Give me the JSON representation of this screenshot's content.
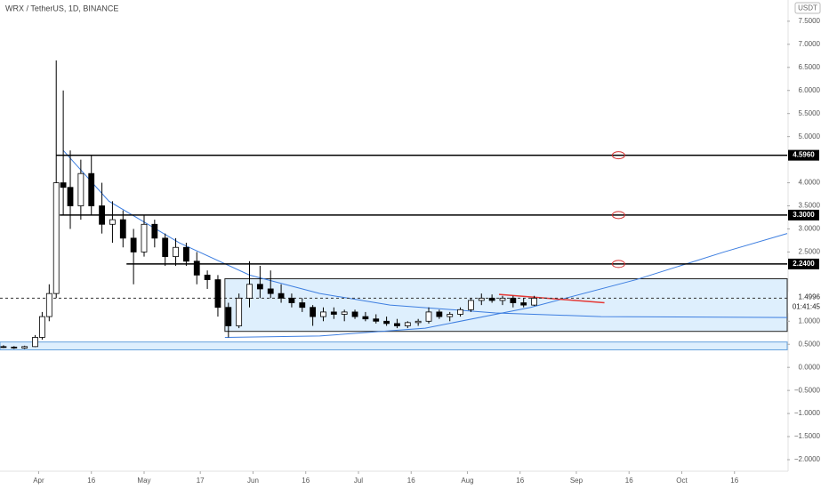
{
  "chart_data": {
    "type": "candlestick",
    "title": "WRX / TetherUS, 1D, BINANCE",
    "currency": "USDT",
    "xlim": [
      -11,
      213
    ],
    "ylim": [
      -2.25,
      7.96
    ],
    "xticks": [
      {
        "value": 0,
        "label": "Apr"
      },
      {
        "value": 15,
        "label": "16"
      },
      {
        "value": 30,
        "label": "May"
      },
      {
        "value": 46,
        "label": "17"
      },
      {
        "value": 61,
        "label": "Jun"
      },
      {
        "value": 76,
        "label": "16"
      },
      {
        "value": 91,
        "label": "Jul"
      },
      {
        "value": 106,
        "label": "16"
      },
      {
        "value": 122,
        "label": "Aug"
      },
      {
        "value": 137,
        "label": "16"
      },
      {
        "value": 153,
        "label": "Sep"
      },
      {
        "value": 168,
        "label": "16"
      },
      {
        "value": 183,
        "label": "Oct"
      },
      {
        "value": 198,
        "label": "16"
      }
    ],
    "yticks": [
      {
        "value": 7.5,
        "label": "7.5000"
      },
      {
        "value": 7,
        "label": "7.0000"
      },
      {
        "value": 6.5,
        "label": "6.5000"
      },
      {
        "value": 6,
        "label": "6.0000"
      },
      {
        "value": 5.5,
        "label": "5.5000"
      },
      {
        "value": 5,
        "label": "5.0000"
      },
      {
        "value": 4,
        "label": "4.0000"
      },
      {
        "value": 3.5,
        "label": "3.5000"
      },
      {
        "value": 3,
        "label": "3.0000"
      },
      {
        "value": 2.5,
        "label": "2.5000"
      },
      {
        "value": 1,
        "label": "1.0000"
      },
      {
        "value": 0.5,
        "label": "0.5000"
      },
      {
        "value": 0,
        "label": "0.0000"
      },
      {
        "value": -0.5,
        "label": "−0.5000"
      },
      {
        "value": -1,
        "label": "−1.0000"
      },
      {
        "value": -1.5,
        "label": "−1.5000"
      },
      {
        "value": -2,
        "label": "−2.0000"
      }
    ],
    "up_color": "#ffffff",
    "down_color": "#000000",
    "x": [
      -10,
      -7,
      -4,
      -1,
      1,
      3,
      5,
      7,
      9,
      12,
      15,
      18,
      21,
      24,
      27,
      30,
      33,
      36,
      39,
      42,
      45,
      48,
      51,
      54,
      57,
      60,
      63,
      66,
      69,
      72,
      75,
      78,
      81,
      84,
      87,
      90,
      93,
      96,
      99,
      102,
      105,
      108,
      111,
      114,
      117,
      120,
      123,
      126,
      129,
      132,
      135,
      138,
      141
    ],
    "open": [
      0.45,
      0.44,
      0.42,
      0.45,
      0.65,
      1.1,
      1.6,
      4.0,
      3.9,
      3.5,
      4.2,
      3.5,
      3.1,
      3.2,
      2.8,
      2.5,
      3.1,
      2.8,
      2.4,
      2.6,
      2.3,
      2.0,
      1.9,
      1.3,
      0.9,
      1.5,
      1.8,
      1.7,
      1.6,
      1.5,
      1.4,
      1.3,
      1.1,
      1.2,
      1.15,
      1.2,
      1.1,
      1.05,
      1.0,
      0.95,
      0.9,
      0.97,
      1.0,
      1.2,
      1.1,
      1.15,
      1.25,
      1.45,
      1.5,
      1.45,
      1.5,
      1.4,
      1.35
    ],
    "high": [
      0.48,
      0.46,
      0.47,
      0.7,
      1.2,
      1.8,
      6.65,
      6.0,
      4.7,
      4.5,
      4.6,
      4.0,
      3.6,
      3.4,
      3.0,
      3.3,
      3.2,
      2.9,
      2.8,
      2.7,
      2.5,
      2.1,
      2.0,
      1.4,
      1.6,
      2.3,
      2.2,
      2.1,
      1.8,
      1.6,
      1.5,
      1.35,
      1.3,
      1.3,
      1.25,
      1.25,
      1.2,
      1.15,
      1.1,
      1.05,
      1.0,
      1.05,
      1.3,
      1.25,
      1.2,
      1.3,
      1.5,
      1.6,
      1.58,
      1.55,
      1.55,
      1.5,
      1.55
    ],
    "low": [
      0.42,
      0.4,
      0.4,
      0.44,
      0.6,
      1.0,
      1.5,
      3.3,
      3.0,
      3.2,
      3.3,
      2.9,
      2.7,
      2.6,
      1.8,
      2.4,
      2.6,
      2.2,
      2.2,
      2.2,
      1.8,
      1.7,
      1.1,
      0.65,
      0.85,
      1.3,
      1.5,
      1.5,
      1.4,
      1.3,
      1.2,
      0.9,
      1.0,
      1.05,
      1.0,
      1.05,
      1.0,
      0.95,
      0.9,
      0.85,
      0.85,
      0.9,
      0.95,
      1.05,
      1.0,
      1.1,
      1.2,
      1.35,
      1.4,
      1.35,
      1.3,
      1.3,
      1.33
    ],
    "close": [
      0.44,
      0.42,
      0.45,
      0.65,
      1.1,
      1.6,
      4.0,
      3.9,
      3.5,
      4.2,
      3.5,
      3.1,
      3.2,
      2.8,
      2.5,
      3.1,
      2.8,
      2.4,
      2.6,
      2.3,
      2.0,
      1.9,
      1.3,
      0.9,
      1.5,
      1.8,
      1.7,
      1.6,
      1.5,
      1.4,
      1.3,
      1.1,
      1.2,
      1.15,
      1.2,
      1.1,
      1.05,
      1.0,
      0.95,
      0.9,
      0.97,
      1.0,
      1.2,
      1.1,
      1.15,
      1.25,
      1.45,
      1.5,
      1.45,
      1.5,
      1.4,
      1.35,
      1.4996
    ],
    "last_price": 1.4996,
    "countdown": "01:41:45",
    "levels": [
      {
        "start": 5,
        "value": 4.596,
        "label": "4.5960"
      },
      {
        "start": 6,
        "value": 3.3,
        "label": "3.3000"
      },
      {
        "start": 25,
        "value": 2.24,
        "label": "2.2400"
      }
    ],
    "marker_x": 165,
    "rectangles": [
      {
        "x": [
          53,
          213
        ],
        "y": [
          0.78,
          1.92
        ]
      },
      {
        "x": [
          -11,
          213
        ],
        "y": [
          0.38,
          0.55
        ]
      }
    ],
    "curves": [
      {
        "x": [
          7,
          20,
          40,
          60,
          80,
          100,
          130,
          160,
          213
        ],
        "y": [
          4.7,
          3.6,
          2.7,
          2.0,
          1.6,
          1.35,
          1.18,
          1.1,
          1.08
        ]
      },
      {
        "x": [
          53,
          80,
          110,
          140,
          170,
          195,
          213
        ],
        "y": [
          0.65,
          0.68,
          0.85,
          1.3,
          1.9,
          2.5,
          2.9
        ]
      }
    ],
    "trendline": {
      "x": [
        131,
        161
      ],
      "y": [
        1.58,
        1.4
      ]
    }
  }
}
